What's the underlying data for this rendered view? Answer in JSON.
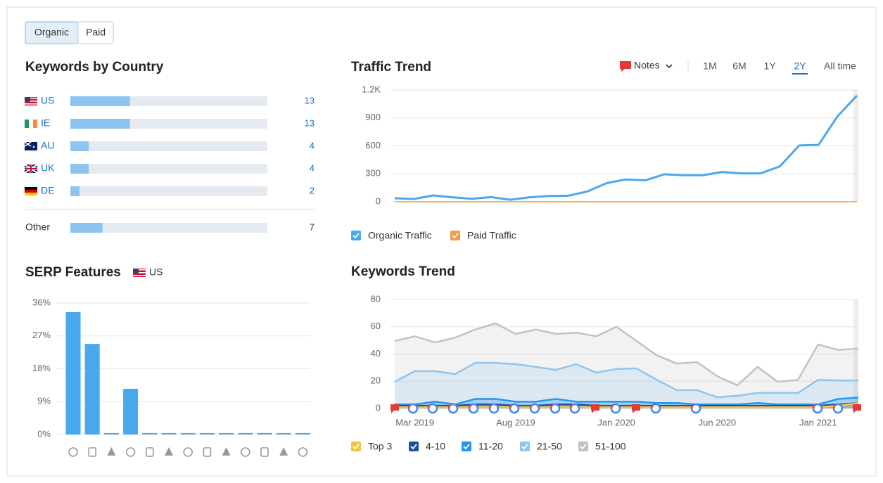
{
  "tabs": {
    "items": [
      "Organic",
      "Paid"
    ],
    "active": 0
  },
  "traffic_controls": {
    "notes": "Notes",
    "periods": [
      "1M",
      "6M",
      "1Y",
      "2Y",
      "All time"
    ],
    "active": 3
  },
  "chart_data": [
    {
      "type": "bar",
      "horizontal": true,
      "title": "Keywords by Country",
      "categories": [
        "US",
        "IE",
        "AU",
        "UK",
        "DE",
        "Other"
      ],
      "values": [
        13,
        13,
        4,
        4,
        2,
        7
      ],
      "color": "#8cc3f0"
    },
    {
      "type": "bar",
      "title": "SERP Features",
      "subtitle": "US",
      "categories": [
        null,
        null,
        null,
        null,
        null,
        null,
        null,
        null,
        null,
        null,
        null,
        null,
        null
      ],
      "values": [
        33.5,
        24.8,
        0.4,
        12.5,
        0.4,
        0.4,
        0.4,
        0.4,
        0.4,
        0.4,
        0.4,
        0.4,
        0.4
      ],
      "color": "#4aa8ef",
      "ylim": [
        0,
        36
      ],
      "yticks": [
        {
          "value": 0,
          "label": "0%"
        },
        {
          "value": 9,
          "label": "9%"
        },
        {
          "value": 18,
          "label": "18%"
        },
        {
          "value": 27,
          "label": "27%"
        },
        {
          "value": 36,
          "label": "36%"
        }
      ],
      "grid": true
    },
    {
      "type": "line",
      "title": "Traffic Trend",
      "categories": [
        null,
        null,
        null,
        null,
        null,
        null,
        null,
        null,
        null,
        null,
        null,
        null,
        null,
        null,
        null,
        null,
        null,
        null,
        null,
        null,
        null,
        null,
        null,
        null,
        null
      ],
      "series": [
        {
          "name": "Organic Traffic",
          "color": "#4aa8ef",
          "values": [
            38,
            30,
            68,
            48,
            32,
            50,
            22,
            48,
            62,
            65,
            110,
            200,
            240,
            230,
            295,
            285,
            285,
            320,
            305,
            305,
            380,
            605,
            610,
            920,
            1140
          ]
        },
        {
          "name": "Paid Traffic",
          "color": "#f59a3d",
          "values": [
            0,
            0,
            0,
            0,
            0,
            0,
            0,
            0,
            0,
            0,
            0,
            0,
            0,
            0,
            0,
            0,
            0,
            0,
            0,
            0,
            0,
            0,
            0,
            0,
            0
          ]
        }
      ],
      "ylim": [
        0,
        1200
      ],
      "yticks": [
        0,
        300,
        600,
        900,
        {
          "value": 1200,
          "label": "1.2K"
        }
      ],
      "grid": true
    },
    {
      "type": "area",
      "title": "Keywords Trend",
      "categories": [
        null,
        "Mar 2019",
        null,
        null,
        null,
        null,
        "Aug 2019",
        null,
        null,
        null,
        null,
        "Jan 2020",
        null,
        null,
        null,
        null,
        "Jun 2020",
        null,
        null,
        null,
        null,
        "Jan 2021",
        null,
        null
      ],
      "series": [
        {
          "name": "Top 3",
          "color": "#f5c342",
          "values": [
            1,
            1,
            1,
            1,
            1,
            1,
            1,
            1,
            1,
            1,
            1,
            1,
            1,
            1,
            1,
            1,
            1,
            1,
            1,
            1,
            1,
            1,
            2,
            4
          ]
        },
        {
          "name": "4-10",
          "color": "#1a4f9c",
          "values": [
            2,
            2,
            2,
            2,
            3,
            3,
            2,
            2,
            3,
            3,
            2,
            2,
            2,
            2,
            2,
            2,
            2,
            2,
            2,
            2,
            2,
            2,
            3,
            4
          ]
        },
        {
          "name": "11-20",
          "color": "#2196f3",
          "values": [
            3,
            3,
            5,
            3,
            7,
            7,
            5,
            5,
            7,
            5,
            5,
            5,
            5,
            4,
            4,
            3,
            3,
            3,
            4,
            3,
            3,
            3,
            7,
            8
          ]
        },
        {
          "name": "21-50",
          "color": "#8ec6f0",
          "values": [
            19.6,
            27.4,
            27.4,
            25.3,
            33.5,
            33.5,
            32.5,
            30.5,
            28.4,
            32.5,
            26.3,
            29,
            29.4,
            21,
            13.4,
            13.4,
            8.3,
            9.3,
            11.4,
            11.4,
            11.4,
            21,
            20.6,
            20.6
          ]
        },
        {
          "name": "51-100",
          "color": "#c2c2c2",
          "values": [
            49.5,
            53,
            48.5,
            52,
            58,
            62.5,
            54.7,
            58,
            54.7,
            55.7,
            53,
            60,
            49.5,
            39,
            33,
            34,
            23.7,
            17,
            30.5,
            19.6,
            21,
            47,
            43,
            44
          ]
        }
      ],
      "ylim": [
        0,
        80
      ],
      "yticks": [
        0,
        20,
        40,
        60,
        80
      ],
      "grid": true
    }
  ]
}
